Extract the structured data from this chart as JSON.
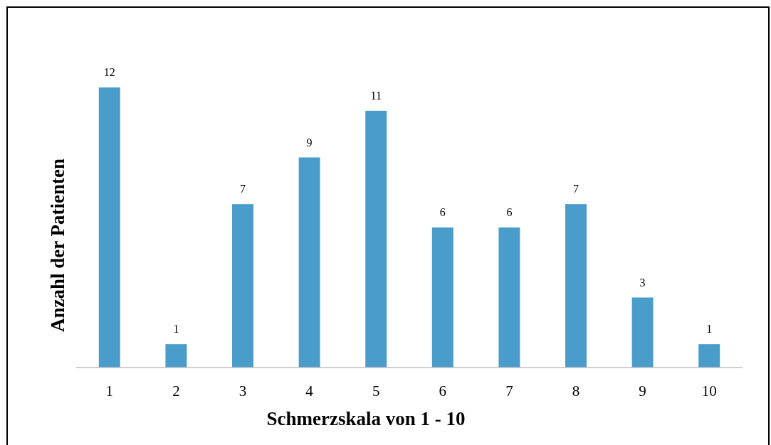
{
  "chart_data": {
    "type": "bar",
    "xlabel": "Schmerzskala von 1 - 10",
    "ylabel": "Anzahl der Patienten",
    "categories": [
      "1",
      "2",
      "3",
      "4",
      "5",
      "6",
      "7",
      "8",
      "9",
      "10"
    ],
    "values": [
      12,
      1,
      7,
      9,
      11,
      6,
      6,
      7,
      3,
      1
    ],
    "color": "#4a9cca",
    "data_labels": true
  }
}
